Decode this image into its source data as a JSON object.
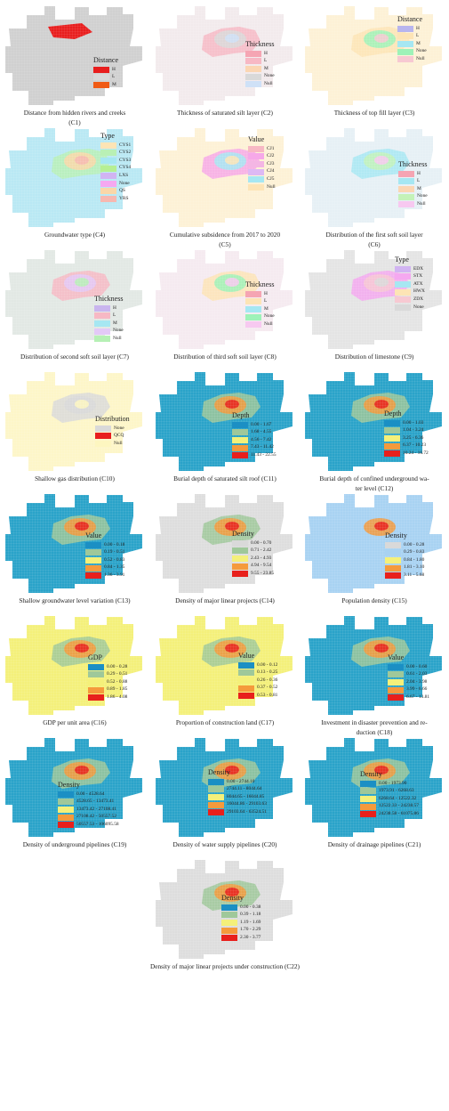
{
  "panels": [
    {
      "id": "C1",
      "caption": "Distance from hidden rivers and creeks",
      "code": "(C1)",
      "base": "#d0d0d0",
      "legend": {
        "title": "Distance",
        "items": [
          {
            "label": "H",
            "color": "#e81e1e"
          },
          {
            "label": "L",
            "color": "#d9d9d9"
          },
          {
            "label": "M",
            "color": "#f05a14"
          }
        ]
      }
    },
    {
      "id": "C2",
      "caption": "Thickness of saturated silt layer (C2)",
      "code": "",
      "base": "#f2eaec",
      "legend": {
        "title": "Thickness",
        "items": [
          {
            "label": "H",
            "color": "#f5a5b3"
          },
          {
            "label": "L",
            "color": "#f7b8c4"
          },
          {
            "label": "M",
            "color": "#fbd6b3"
          },
          {
            "label": "None",
            "color": "#d9d9d9"
          },
          {
            "label": "Null",
            "color": "#cfe1f7"
          }
        ]
      }
    },
    {
      "id": "C3",
      "caption": "Thickness of top fill layer (C3)",
      "code": "",
      "base": "#fdf1d6",
      "legend": {
        "title": "Distance",
        "items": [
          {
            "label": "H",
            "color": "#b8b5ee"
          },
          {
            "label": "L",
            "color": "#fde4b5"
          },
          {
            "label": "M",
            "color": "#a6e7f2"
          },
          {
            "label": "None",
            "color": "#9ef2b8"
          },
          {
            "label": "Null",
            "color": "#f7c9d2"
          }
        ]
      }
    },
    {
      "id": "C4",
      "caption": "Groundwater type (C4)",
      "code": "",
      "base": "#b9e8f4",
      "legend": {
        "title": "Type",
        "items": [
          {
            "label": "CYS1",
            "color": "#fde4b5"
          },
          {
            "label": "CYS2",
            "color": "#b9f0b5"
          },
          {
            "label": "CYS3",
            "color": "#a6e7f2"
          },
          {
            "label": "CYS4",
            "color": "#b6ef93"
          },
          {
            "label": "LXS",
            "color": "#d1b4f2"
          },
          {
            "label": "None",
            "color": "#f5a8f0"
          },
          {
            "label": "QS",
            "color": "#fad7a8"
          },
          {
            "label": "YRS",
            "color": "#f7b8b0"
          }
        ]
      }
    },
    {
      "id": "C5",
      "caption": "Cumulative subsidence from 2017 to 2020",
      "code": "(C5)",
      "base": "#fdf1d6",
      "legend": {
        "title": "Value",
        "items": [
          {
            "label": "CJ1",
            "color": "#f7b8c4"
          },
          {
            "label": "CJ2",
            "color": "#f6a8e8"
          },
          {
            "label": "CJ3",
            "color": "#f4b6e4"
          },
          {
            "label": "CJ4",
            "color": "#ddb9f4"
          },
          {
            "label": "CJ5",
            "color": "#a6e7f2"
          },
          {
            "label": "Null",
            "color": "#fde4b5"
          }
        ]
      }
    },
    {
      "id": "C6",
      "caption": "Distribution of the first soft soil layer",
      "code": "(C6)",
      "base": "#e6f0f5",
      "legend": {
        "title": "Thickness",
        "items": [
          {
            "label": "H",
            "color": "#f5a5b3"
          },
          {
            "label": "L",
            "color": "#a6e7f2"
          },
          {
            "label": "M",
            "color": "#fbd6b3"
          },
          {
            "label": "None",
            "color": "#c4f2b8"
          },
          {
            "label": "Null",
            "color": "#f7c9f0"
          }
        ]
      }
    },
    {
      "id": "C7",
      "caption": "Distribution of second soft soil layer (C7)",
      "code": "",
      "base": "#e2e8e4",
      "legend": {
        "title": "Thickness",
        "items": [
          {
            "label": "H",
            "color": "#c9b5ee"
          },
          {
            "label": "L",
            "color": "#f7b8c4"
          },
          {
            "label": "M",
            "color": "#a6e7f2"
          },
          {
            "label": "None",
            "color": "#e3c9f7"
          },
          {
            "label": "Null",
            "color": "#b6f0b5"
          }
        ]
      }
    },
    {
      "id": "C8",
      "caption": "Distribution of third soft soil layer (C8)",
      "code": "",
      "base": "#f5eaf0",
      "legend": {
        "title": "Thickness",
        "items": [
          {
            "label": "H",
            "color": "#f5a5b3"
          },
          {
            "label": "L",
            "color": "#fde4b5"
          },
          {
            "label": "M",
            "color": "#a6e7f2"
          },
          {
            "label": "None",
            "color": "#9ef2b8"
          },
          {
            "label": "Null",
            "color": "#f7c9f0"
          }
        ]
      }
    },
    {
      "id": "C9",
      "caption": "Distribution of limestone (C9)",
      "code": "",
      "base": "#e4e4e4",
      "legend": {
        "title": "Type",
        "items": [
          {
            "label": "EDX",
            "color": "#d1b4f2"
          },
          {
            "label": "STX",
            "color": "#f5a8f0"
          },
          {
            "label": "ATX",
            "color": "#a6e7f2"
          },
          {
            "label": "HWX",
            "color": "#fde4b5"
          },
          {
            "label": "ZDX",
            "color": "#f7c9d2"
          },
          {
            "label": "None",
            "color": "#d9d9d9"
          }
        ]
      }
    },
    {
      "id": "C10",
      "caption": "Shallow gas distribution (C10)",
      "code": "",
      "base": "#fdf6c8",
      "legend": {
        "title": "Distribution",
        "items": [
          {
            "label": "None",
            "color": "#d9d9d9"
          },
          {
            "label": "QCQ",
            "color": "#e81e1e"
          },
          {
            "label": "Null",
            "color": "#fdf6c0"
          }
        ]
      }
    },
    {
      "id": "C11",
      "caption": "Burial depth of saturated silt roof (C11)",
      "code": "",
      "base": "#2aa3c9",
      "legend": {
        "title": "Depth",
        "items": [
          {
            "label": "0.00 - 1.67",
            "color": "#1b8fc4"
          },
          {
            "label": "1.68 - 4.55",
            "color": "#9fc89a"
          },
          {
            "label": "4.56 - 7.42",
            "color": "#f4f07a"
          },
          {
            "label": "7.43 - 11.42",
            "color": "#f59a3c"
          },
          {
            "label": "11.43 - 22.55",
            "color": "#e8201c"
          }
        ]
      }
    },
    {
      "id": "C12",
      "caption": "Burial depth of confined underground wa-",
      "code": "ter level (C12)",
      "base": "#2aa3c9",
      "legend": {
        "title": "Depth",
        "items": [
          {
            "label": "0.00 - 1.03",
            "color": "#1b8fc4"
          },
          {
            "label": "1.04 - 3.24",
            "color": "#9fc89a"
          },
          {
            "label": "3.25 - 6.36",
            "color": "#f4f07a"
          },
          {
            "label": "6.37 - 10.23",
            "color": "#f59a3c"
          },
          {
            "label": "10.24 - 16.72",
            "color": "#e8201c"
          }
        ]
      }
    },
    {
      "id": "C13",
      "caption": "Shallow groundwater level variation (C13)",
      "code": "",
      "base": "#2aa3c9",
      "legend": {
        "title": "Value",
        "items": [
          {
            "label": "0.00 - 0.18",
            "color": "#1b8fc4"
          },
          {
            "label": "0.19 - 0.51",
            "color": "#9fc89a"
          },
          {
            "label": "0.52 - 0.83",
            "color": "#f4f07a"
          },
          {
            "label": "0.84 - 1.35",
            "color": "#f59a3c"
          },
          {
            "label": "1.36 - 3.91",
            "color": "#e8201c"
          }
        ]
      }
    },
    {
      "id": "C14",
      "caption": "Density of major linear projects (C14)",
      "code": "",
      "base": "#dddddd",
      "legend": {
        "title": "Density",
        "items": [
          {
            "label": "0.00 - 0.70",
            "color": "#d9d9d9"
          },
          {
            "label": "0.71 - 2.42",
            "color": "#9fc89a"
          },
          {
            "label": "2.43 - 4.93",
            "color": "#f4f07a"
          },
          {
            "label": "4.94 - 9.54",
            "color": "#f59a3c"
          },
          {
            "label": "9.55 - 23.85",
            "color": "#e8201c"
          }
        ]
      }
    },
    {
      "id": "C15",
      "caption": "Population density (C15)",
      "code": "",
      "base": "#a8d2f2",
      "legend": {
        "title": "Density",
        "items": [
          {
            "label": "0.00 - 0.28",
            "color": "#d9d9d9"
          },
          {
            "label": "0.29 - 0.83",
            "color": "#a8d2f2"
          },
          {
            "label": "0.84 - 1.80",
            "color": "#f4f07a"
          },
          {
            "label": "1.81 - 3.10",
            "color": "#f59a3c"
          },
          {
            "label": "3.11 - 5.68",
            "color": "#e8201c"
          }
        ]
      }
    },
    {
      "id": "C16",
      "caption": "GDP per unit area (C16)",
      "code": "",
      "base": "#f4f07a",
      "legend": {
        "title": "GDP",
        "items": [
          {
            "label": "0.00 - 0.28",
            "color": "#1b8fc4"
          },
          {
            "label": "0.29 - 0.51",
            "color": "#9fc89a"
          },
          {
            "label": "0.52 - 0.88",
            "color": "#f4f07a"
          },
          {
            "label": "0.89 - 1.85",
            "color": "#f59a3c"
          },
          {
            "label": "1.86 - 4.08",
            "color": "#e8201c"
          }
        ]
      }
    },
    {
      "id": "C17",
      "caption": "Proportion of construction land (C17)",
      "code": "",
      "base": "#f4f07a",
      "legend": {
        "title": "Value",
        "items": [
          {
            "label": "0.00 - 0.12",
            "color": "#1b8fc4"
          },
          {
            "label": "0.13 - 0.25",
            "color": "#9fc89a"
          },
          {
            "label": "0.26 - 0.36",
            "color": "#f4f07a"
          },
          {
            "label": "0.37 - 0.52",
            "color": "#f59a3c"
          },
          {
            "label": "0.53 - 0.81",
            "color": "#e8201c"
          }
        ]
      }
    },
    {
      "id": "C18",
      "caption": "Investment in disaster prevention and re-",
      "code": "duction (C18)",
      "base": "#2aa3c9",
      "legend": {
        "title": "Value",
        "items": [
          {
            "label": "0.00 - 0.60",
            "color": "#1b8fc4"
          },
          {
            "label": "0.61 - 2.03",
            "color": "#9fc89a"
          },
          {
            "label": "2.04 - 3.98",
            "color": "#f4f07a"
          },
          {
            "label": "3.99 - 6.66",
            "color": "#f59a3c"
          },
          {
            "label": "6.67 - 13.81",
            "color": "#e8201c"
          }
        ]
      }
    },
    {
      "id": "C19",
      "caption": "Density of underground pipelines (C19)",
      "code": "",
      "base": "#2aa3c9",
      "legend": {
        "title": "Density",
        "items": [
          {
            "label": "0.00 - 4528.64",
            "color": "#1b8fc4"
          },
          {
            "label": "4528.65 - 13473.41",
            "color": "#9fc89a"
          },
          {
            "label": "13473.42 - 27108.41",
            "color": "#f4f07a"
          },
          {
            "label": "27108.42 - 50557.52",
            "color": "#f59a3c"
          },
          {
            "label": "50557.53 - 106095.58",
            "color": "#e8201c"
          }
        ]
      }
    },
    {
      "id": "C20",
      "caption": "Density of water supply pipelines (C20)",
      "code": "",
      "base": "#2aa3c9",
      "legend": {
        "title": "Density",
        "items": [
          {
            "label": "0.00 - 2744.10",
            "color": "#1b8fc4"
          },
          {
            "label": "2744.11 - 8044.64",
            "color": "#9fc89a"
          },
          {
            "label": "8044.65 - 16044.85",
            "color": "#f4f07a"
          },
          {
            "label": "16044.86 - 29103.63",
            "color": "#f59a3c"
          },
          {
            "label": "29103.64 - 63524.51",
            "color": "#e8201c"
          }
        ]
      }
    },
    {
      "id": "C21",
      "caption": "Density of drainage pipelines (C21)",
      "code": "",
      "base": "#2aa3c9",
      "legend": {
        "title": "Density",
        "items": [
          {
            "label": "0.00 - 1973.90",
            "color": "#1b8fc4"
          },
          {
            "label": "1973.91 - 6268.63",
            "color": "#9fc89a"
          },
          {
            "label": "6268.64 - 12522.32",
            "color": "#f4f07a"
          },
          {
            "label": "12522.33 - 24238.57",
            "color": "#f59a3c"
          },
          {
            "label": "24238.58 - 61075.86",
            "color": "#e8201c"
          }
        ]
      }
    },
    {
      "id": "C22",
      "caption": "Density of major linear projects under construction (C22)",
      "code": "",
      "base": "#dddddd",
      "legend": {
        "title": "Density",
        "items": [
          {
            "label": "0.00 - 0.38",
            "color": "#1b8fc4"
          },
          {
            "label": "0.39 - 1.18",
            "color": "#9fc89a"
          },
          {
            "label": "1.19 - 1.69",
            "color": "#f4f07a"
          },
          {
            "label": "1.70 - 2.29",
            "color": "#f59a3c"
          },
          {
            "label": "2.30 - 3.77",
            "color": "#e8201c"
          }
        ]
      }
    }
  ]
}
